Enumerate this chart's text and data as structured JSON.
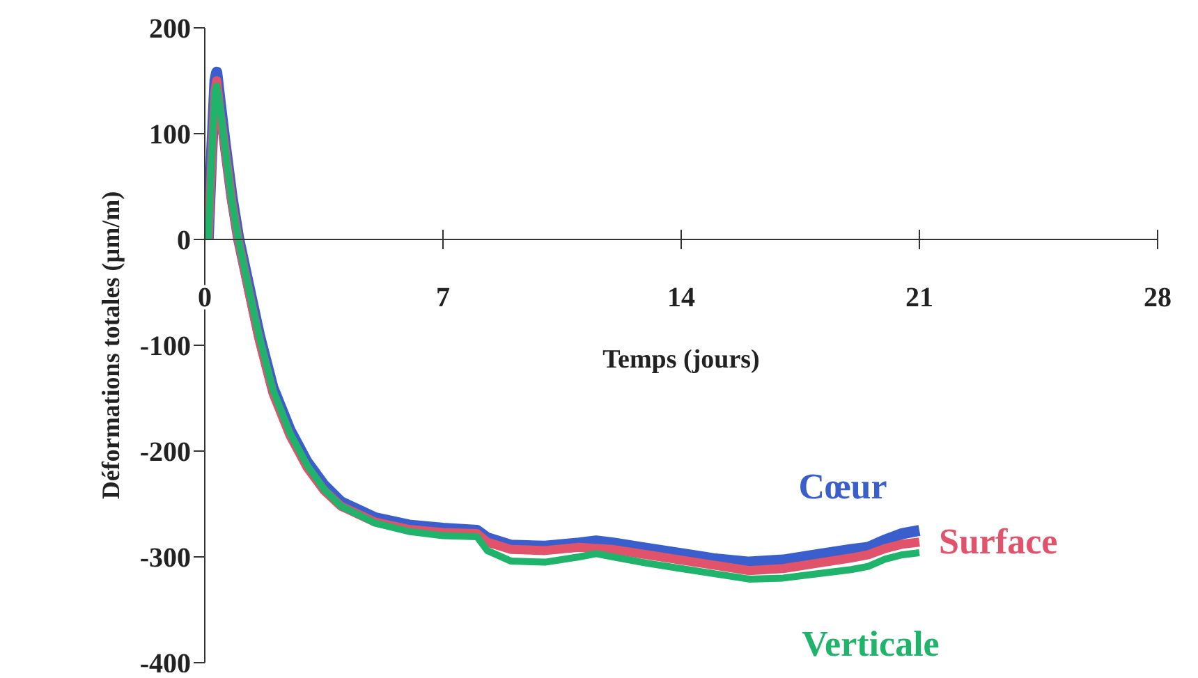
{
  "chart_data": {
    "type": "line",
    "xlabel": "Temps (jours)",
    "ylabel": "Déformations totales (µm/m)",
    "x": [
      0.1,
      0.2,
      0.3,
      0.35,
      0.45,
      0.6,
      0.8,
      1.0,
      1.3,
      1.6,
      2.0,
      2.5,
      3.0,
      3.5,
      4.0,
      5.0,
      6.0,
      7.0,
      8.0,
      8.3,
      9.0,
      10.0,
      11.0,
      11.5,
      12.0,
      13.0,
      14.0,
      15.0,
      16.0,
      17.0,
      18.0,
      19.0,
      19.5,
      20.0,
      20.5,
      21.0
    ],
    "series": [
      {
        "name": "Cœur",
        "color": "#3a5fcd",
        "values": [
          0,
          80,
          150,
          158,
          130,
          90,
          40,
          0,
          -45,
          -90,
          -140,
          -180,
          -210,
          -232,
          -248,
          -263,
          -270,
          -273,
          -275,
          -282,
          -289,
          -290,
          -287,
          -285,
          -287,
          -292,
          -297,
          -302,
          -305,
          -303,
          -298,
          -293,
          -291,
          -284,
          -278,
          -275
        ]
      },
      {
        "name": "Surface",
        "color": "#e0536a",
        "values": [
          0,
          70,
          140,
          150,
          120,
          85,
          35,
          -3,
          -50,
          -95,
          -145,
          -185,
          -215,
          -237,
          -252,
          -267,
          -274,
          -277,
          -278,
          -286,
          -293,
          -294,
          -291,
          -292,
          -293,
          -298,
          -303,
          -308,
          -313,
          -311,
          -306,
          -301,
          -298,
          -292,
          -288,
          -286
        ]
      },
      {
        "name": "Verticale",
        "color": "#1fb36b",
        "values": [
          0,
          75,
          140,
          145,
          125,
          85,
          35,
          -2,
          -48,
          -92,
          -142,
          -183,
          -213,
          -236,
          -252,
          -268,
          -276,
          -280,
          -281,
          -294,
          -304,
          -305,
          -300,
          -297,
          -300,
          -306,
          -311,
          -316,
          -321,
          -320,
          -316,
          -312,
          -309,
          -302,
          -298,
          -296
        ]
      }
    ],
    "xlim": [
      0,
      28
    ],
    "xticks": [
      0,
      7,
      14,
      21,
      28
    ],
    "ylim": [
      -400,
      200
    ],
    "yticks": [
      -400,
      -300,
      -200,
      -100,
      0,
      100,
      200
    ],
    "grid": false,
    "legend": false,
    "marker": "none"
  }
}
